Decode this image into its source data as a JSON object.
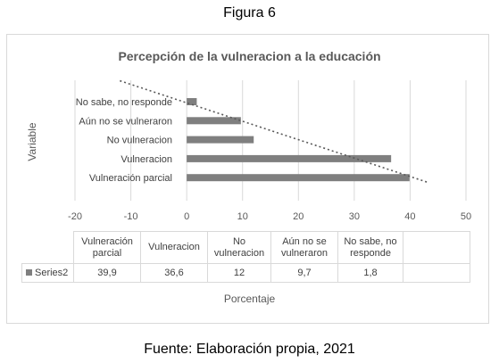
{
  "figure_label": "Figura 6",
  "source_note": "Fuente: Elaboración propia, 2021",
  "chart_data": {
    "type": "bar",
    "orientation": "horizontal",
    "title": "Percepción de la vulneracion  a la educación",
    "xlabel": "Porcentaje",
    "ylabel": "Variable",
    "categories": [
      "Vulneración parcial",
      "Vulneracion",
      "No vulneracion",
      "Aún no se vulneraron",
      "No sabe, no responde"
    ],
    "table_headers": [
      "Vulneración parcial",
      "Vulneracion",
      "No vulneracion",
      "Aún no se vulneraron",
      "No sabe, no responde"
    ],
    "series": [
      {
        "name": "Series2",
        "values": [
          39.9,
          36.6,
          12,
          9.7,
          1.8
        ],
        "value_labels": [
          "39,9",
          "36,6",
          "12",
          "9,7",
          "1,8"
        ],
        "color": "#7f7f7f"
      }
    ],
    "xlim": [
      -20,
      50
    ],
    "xticks": [
      -20,
      -10,
      0,
      10,
      20,
      30,
      40,
      50
    ],
    "grid": "vertical",
    "trendline": {
      "type": "linear",
      "style": "dotted"
    },
    "legend": "data-table"
  }
}
